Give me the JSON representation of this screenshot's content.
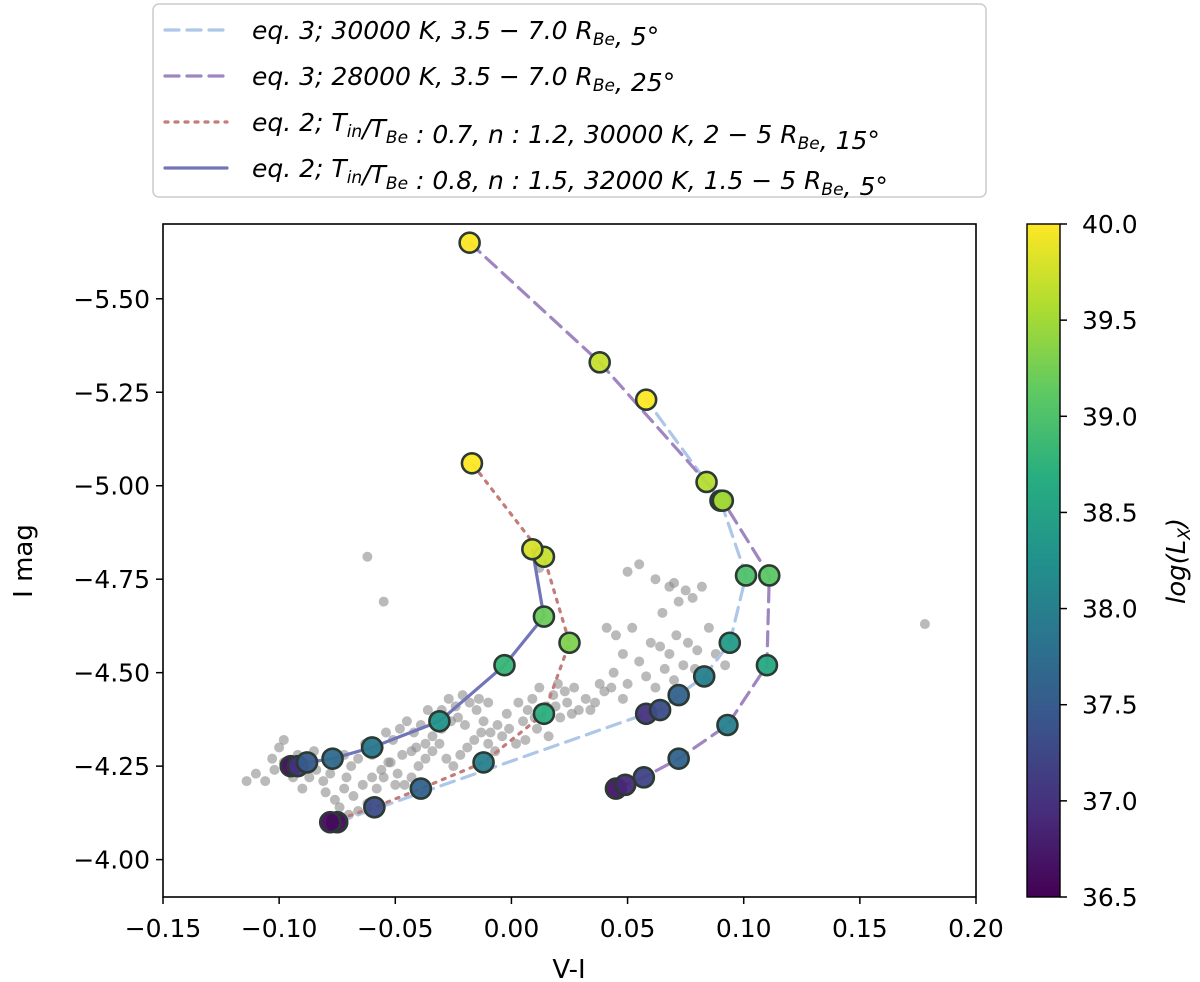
{
  "chart_data": {
    "type": "scatter",
    "xlabel": "V-I",
    "ylabel": "I mag",
    "xlim": [
      -0.15,
      0.2
    ],
    "ylim": [
      -3.9,
      -5.7
    ],
    "y_inverted": true,
    "xticks": [
      "−0.15",
      "−0.10",
      "−0.05",
      "0.00",
      "0.05",
      "0.10",
      "0.15",
      "0.20"
    ],
    "yticks": [
      "−5.50",
      "−5.25",
      "−5.00",
      "−4.75",
      "−4.50",
      "−4.25",
      "−4.00"
    ],
    "xtick_values": [
      -0.15,
      -0.1,
      -0.05,
      0.0,
      0.05,
      0.1,
      0.15,
      0.2
    ],
    "ytick_values": [
      -5.5,
      -5.25,
      -5.0,
      -4.75,
      -4.5,
      -4.25,
      -4.0
    ],
    "colorbar": {
      "label": "log(L_X)",
      "range": [
        36.5,
        40.0
      ],
      "ticks": [
        "36.5",
        "37.0",
        "37.5",
        "38.0",
        "38.5",
        "39.0",
        "39.5",
        "40.0"
      ],
      "tick_values": [
        36.5,
        37.0,
        37.5,
        38.0,
        38.5,
        39.0,
        39.5,
        40.0
      ],
      "colormap": "viridis"
    },
    "legend_placement": "above plot",
    "legend": [
      {
        "style": "dashed",
        "color": "#aec7e8",
        "eq": "eq. 3",
        "parts": [
          "30000 K",
          "3.5 − 7.0 R_Be",
          "5°"
        ]
      },
      {
        "style": "dashed",
        "color": "#9f86c0",
        "eq": "eq. 3",
        "parts": [
          "28000 K",
          "3.5 − 7.0 R_Be",
          "25°"
        ]
      },
      {
        "style": "dotted",
        "color": "#c27c7a",
        "eq": "eq. 2",
        "parts": [
          "T_in/T_Be : 0.7",
          "n : 1.2",
          "30000 K",
          "2 − 5 R_Be",
          "15°"
        ]
      },
      {
        "style": "solid",
        "color": "#7275b8",
        "eq": "eq. 2",
        "parts": [
          "T_in/T_Be : 0.8",
          "n : 1.5",
          "32000 K",
          "1.5 − 5 R_Be",
          "5°"
        ]
      }
    ],
    "model_tracks": [
      {
        "legend_index": 0,
        "points": [
          [
            -0.075,
            -4.1,
            36.6
          ],
          [
            0.058,
            -4.39,
            37.0
          ],
          [
            0.064,
            -4.4,
            37.3
          ],
          [
            0.072,
            -4.44,
            37.6
          ],
          [
            0.083,
            -4.49,
            38.0
          ],
          [
            0.094,
            -4.58,
            38.4
          ],
          [
            0.101,
            -4.76,
            39.0
          ],
          [
            0.09,
            -4.96,
            39.4
          ],
          [
            0.084,
            -5.01,
            39.6
          ],
          [
            0.058,
            -5.23,
            40.0
          ]
        ]
      },
      {
        "legend_index": 1,
        "points": [
          [
            0.045,
            -4.19,
            36.7
          ],
          [
            0.049,
            -4.2,
            36.9
          ],
          [
            0.057,
            -4.22,
            37.2
          ],
          [
            0.072,
            -4.27,
            37.6
          ],
          [
            0.093,
            -4.36,
            38.0
          ],
          [
            0.11,
            -4.52,
            38.6
          ],
          [
            0.111,
            -4.76,
            39.1
          ],
          [
            0.091,
            -4.96,
            39.5
          ],
          [
            0.038,
            -5.33,
            39.7
          ],
          [
            -0.018,
            -5.65,
            40.0
          ]
        ]
      },
      {
        "legend_index": 2,
        "points": [
          [
            -0.078,
            -4.1,
            36.6
          ],
          [
            -0.059,
            -4.14,
            37.3
          ],
          [
            -0.039,
            -4.19,
            37.6
          ],
          [
            -0.012,
            -4.26,
            38.0
          ],
          [
            0.014,
            -4.39,
            38.7
          ],
          [
            0.025,
            -4.58,
            39.3
          ],
          [
            0.014,
            -4.81,
            39.7
          ],
          [
            -0.017,
            -5.06,
            40.0
          ]
        ]
      },
      {
        "legend_index": 3,
        "points": [
          [
            -0.095,
            -4.25,
            36.6
          ],
          [
            -0.092,
            -4.25,
            37.0
          ],
          [
            -0.088,
            -4.26,
            37.5
          ],
          [
            -0.077,
            -4.27,
            37.7
          ],
          [
            -0.06,
            -4.3,
            37.9
          ],
          [
            -0.031,
            -4.37,
            38.3
          ],
          [
            -0.003,
            -4.52,
            38.8
          ],
          [
            0.014,
            -4.65,
            39.2
          ],
          [
            0.009,
            -4.83,
            39.8
          ]
        ]
      }
    ],
    "observed_points": [
      [
        0.178,
        -4.63
      ],
      [
        -0.062,
        -4.81
      ],
      [
        -0.055,
        -4.69
      ],
      [
        0.012,
        -4.78
      ],
      [
        0.05,
        -4.77
      ],
      [
        0.055,
        -4.79
      ],
      [
        0.062,
        -4.75
      ],
      [
        0.068,
        -4.73
      ],
      [
        0.07,
        -4.74
      ],
      [
        0.075,
        -4.72
      ],
      [
        0.065,
        -4.66
      ],
      [
        0.072,
        -4.69
      ],
      [
        0.078,
        -4.7
      ],
      [
        0.082,
        -4.73
      ],
      [
        0.041,
        -4.62
      ],
      [
        0.045,
        -4.6
      ],
      [
        0.052,
        -4.62
      ],
      [
        0.06,
        -4.58
      ],
      [
        0.048,
        -4.55
      ],
      [
        0.055,
        -4.53
      ],
      [
        0.064,
        -4.57
      ],
      [
        0.068,
        -4.55
      ],
      [
        0.071,
        -4.6
      ],
      [
        0.076,
        -4.58
      ],
      [
        0.08,
        -4.56
      ],
      [
        0.085,
        -4.62
      ],
      [
        0.088,
        -4.55
      ],
      [
        0.092,
        -4.52
      ],
      [
        0.074,
        -4.52
      ],
      [
        0.066,
        -4.51
      ],
      [
        0.058,
        -4.49
      ],
      [
        0.05,
        -4.47
      ],
      [
        0.044,
        -4.5
      ],
      [
        0.04,
        -4.45
      ],
      [
        0.036,
        -4.42
      ],
      [
        0.032,
        -4.43
      ],
      [
        0.027,
        -4.46
      ],
      [
        0.023,
        -4.45
      ],
      [
        0.02,
        -4.47
      ],
      [
        0.018,
        -4.44
      ],
      [
        0.015,
        -4.41
      ],
      [
        0.012,
        -4.46
      ],
      [
        0.009,
        -4.43
      ],
      [
        0.007,
        -4.4
      ],
      [
        0.003,
        -4.42
      ],
      [
        0.005,
        -4.37
      ],
      [
        0.011,
        -4.35
      ],
      [
        0.016,
        -4.33
      ],
      [
        0.006,
        -4.32
      ],
      [
        -0.002,
        -4.39
      ],
      [
        -0.006,
        -4.36
      ],
      [
        -0.009,
        -4.34
      ],
      [
        -0.012,
        -4.37
      ],
      [
        -0.015,
        -4.4
      ],
      [
        -0.018,
        -4.42
      ],
      [
        -0.021,
        -4.44
      ],
      [
        -0.024,
        -4.41
      ],
      [
        -0.027,
        -4.43
      ],
      [
        -0.03,
        -4.4
      ],
      [
        -0.033,
        -4.38
      ],
      [
        -0.036,
        -4.4
      ],
      [
        -0.039,
        -4.36
      ],
      [
        -0.042,
        -4.34
      ],
      [
        -0.045,
        -4.37
      ],
      [
        -0.048,
        -4.35
      ],
      [
        -0.051,
        -4.32
      ],
      [
        -0.054,
        -4.34
      ],
      [
        -0.057,
        -4.3
      ],
      [
        -0.06,
        -4.28
      ],
      [
        -0.063,
        -4.31
      ],
      [
        -0.066,
        -4.27
      ],
      [
        -0.069,
        -4.25
      ],
      [
        -0.072,
        -4.28
      ],
      [
        -0.075,
        -4.26
      ],
      [
        -0.078,
        -4.23
      ],
      [
        -0.081,
        -4.21
      ],
      [
        -0.084,
        -4.24
      ],
      [
        -0.087,
        -4.22
      ],
      [
        -0.09,
        -4.19
      ],
      [
        -0.094,
        -4.22
      ],
      [
        -0.098,
        -4.26
      ],
      [
        -0.102,
        -4.24
      ],
      [
        -0.106,
        -4.21
      ],
      [
        -0.11,
        -4.23
      ],
      [
        -0.114,
        -4.21
      ],
      [
        -0.1,
        -4.3
      ],
      [
        -0.098,
        -4.32
      ],
      [
        -0.092,
        -4.28
      ],
      [
        -0.085,
        -4.29
      ],
      [
        -0.08,
        -4.18
      ],
      [
        -0.076,
        -4.16
      ],
      [
        -0.072,
        -4.19
      ],
      [
        -0.068,
        -4.17
      ],
      [
        -0.064,
        -4.2
      ],
      [
        -0.06,
        -4.22
      ],
      [
        -0.056,
        -4.24
      ],
      [
        -0.052,
        -4.26
      ],
      [
        -0.049,
        -4.23
      ],
      [
        -0.046,
        -4.2
      ],
      [
        -0.043,
        -4.22
      ],
      [
        -0.04,
        -4.25
      ],
      [
        -0.037,
        -4.27
      ],
      [
        -0.034,
        -4.29
      ],
      [
        -0.031,
        -4.31
      ],
      [
        -0.028,
        -4.27
      ],
      [
        -0.025,
        -4.25
      ],
      [
        -0.022,
        -4.28
      ],
      [
        -0.019,
        -4.3
      ],
      [
        -0.016,
        -4.32
      ],
      [
        -0.013,
        -4.34
      ],
      [
        -0.01,
        -4.31
      ],
      [
        -0.007,
        -4.29
      ],
      [
        -0.004,
        -4.33
      ],
      [
        -0.001,
        -4.35
      ],
      [
        0.002,
        -4.31
      ],
      [
        -0.02,
        -4.36
      ],
      [
        -0.026,
        -4.37
      ],
      [
        -0.034,
        -4.33
      ],
      [
        -0.041,
        -4.3
      ],
      [
        -0.047,
        -4.28
      ],
      [
        -0.053,
        -4.26
      ],
      [
        -0.058,
        -4.19
      ],
      [
        -0.062,
        -4.15
      ],
      [
        -0.066,
        -4.13
      ],
      [
        -0.07,
        -4.12
      ],
      [
        -0.074,
        -4.14
      ],
      [
        0.01,
        -4.38
      ],
      [
        0.013,
        -4.38
      ],
      [
        0.019,
        -4.41
      ],
      [
        0.024,
        -4.42
      ],
      [
        0.029,
        -4.4
      ],
      [
        0.034,
        -4.4
      ],
      [
        0.038,
        -4.47
      ],
      [
        0.043,
        -4.46
      ],
      [
        0.048,
        -4.43
      ],
      [
        -0.01,
        -4.42
      ],
      [
        -0.014,
        -4.43
      ],
      [
        -0.023,
        -4.38
      ],
      [
        -0.03,
        -4.35
      ],
      [
        -0.043,
        -4.29
      ],
      [
        -0.037,
        -4.31
      ],
      [
        -0.05,
        -4.2
      ],
      [
        -0.055,
        -4.22
      ],
      [
        -0.071,
        -4.22
      ],
      [
        -0.088,
        -4.25
      ],
      [
        -0.103,
        -4.27
      ],
      [
        0.021,
        -4.38
      ],
      [
        0.026,
        -4.39
      ],
      [
        0.062,
        -4.46
      ],
      [
        0.07,
        -4.48
      ],
      [
        0.079,
        -4.51
      ],
      [
        0.084,
        -4.48
      ]
    ]
  }
}
